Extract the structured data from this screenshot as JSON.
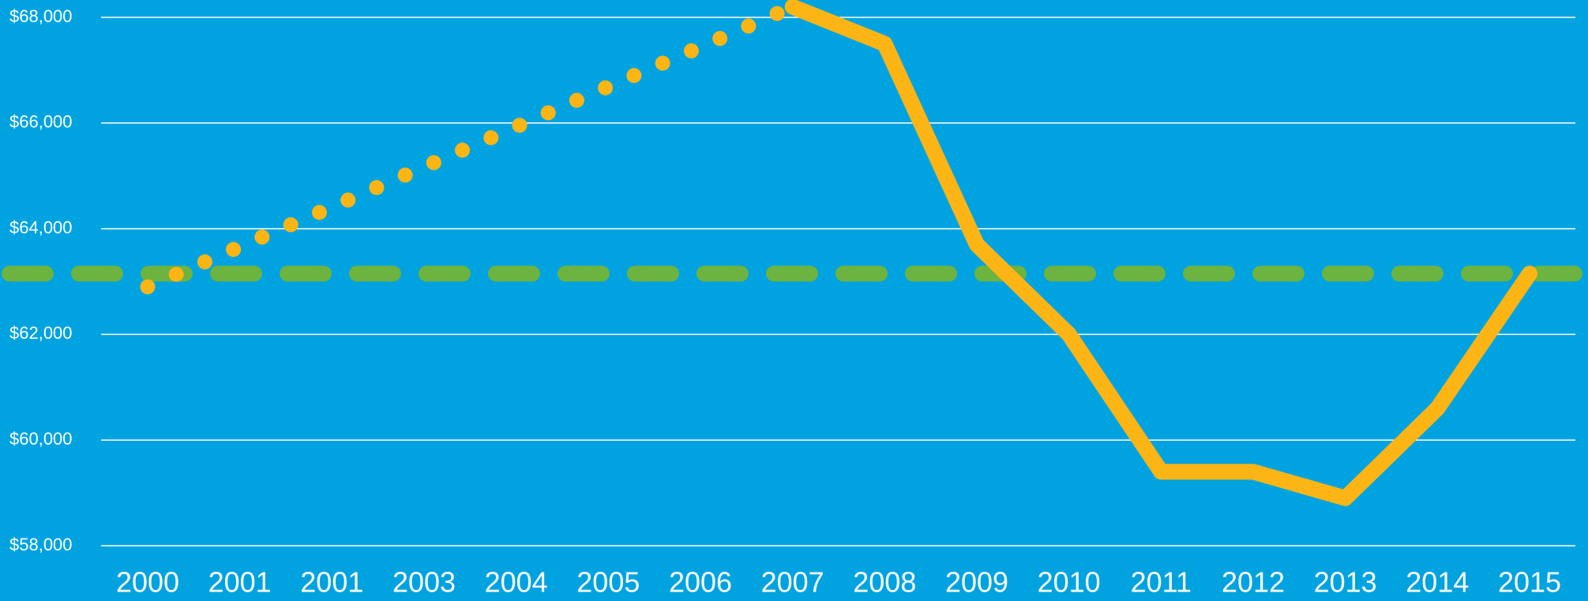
{
  "chart_data": {
    "type": "line",
    "categories": [
      "2000",
      "2001",
      "2001",
      "2003",
      "2004",
      "2005",
      "2006",
      "2007",
      "2008",
      "2009",
      "2010",
      "2011",
      "2012",
      "2013",
      "2014",
      "2015"
    ],
    "series": [
      {
        "color": "#fdb515",
        "style": "dotted",
        "values": [
          62900,
          63660,
          64410,
          65170,
          65930,
          66690,
          67440,
          68200,
          null,
          null,
          null,
          null,
          null,
          null,
          null,
          null
        ]
      },
      {
        "color": "#fdb515",
        "style": "solid",
        "values": [
          null,
          null,
          null,
          null,
          null,
          null,
          null,
          68200,
          67500,
          63700,
          62000,
          59400,
          59400,
          58900,
          60600,
          63150
        ]
      }
    ],
    "reference_line": {
      "value": 63150,
      "color": "#6db33f",
      "style": "dashed"
    },
    "ylim": [
      58000,
      68000
    ],
    "yticks": [
      {
        "value": 58000,
        "label": "$58,000"
      },
      {
        "value": 60000,
        "label": "$60,000"
      },
      {
        "value": 62000,
        "label": "$62,000"
      },
      {
        "value": 64000,
        "label": "$64,000"
      },
      {
        "value": 66000,
        "label": "$66,000"
      },
      {
        "value": 68000,
        "label": "$68,000"
      }
    ],
    "grid": true
  }
}
